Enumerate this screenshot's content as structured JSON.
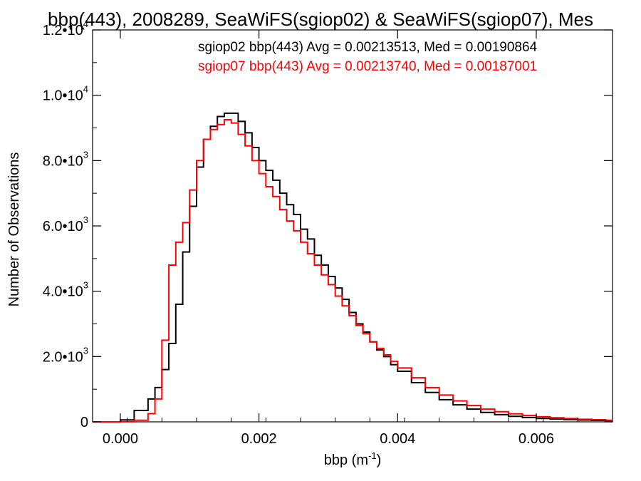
{
  "chart_data": {
    "type": "line",
    "title": "bbp(443), 2008289, SeaWiFS(sgiop02) & SeaWiFS(sgiop07), Mes",
    "xlabel": "bbp (m",
    "xlabel_exp": "-1",
    "xlabel_suffix": ")",
    "ylabel": "Number of Observations",
    "xlim": [
      -0.0004,
      0.0071
    ],
    "ylim": [
      0,
      12000
    ],
    "x_ticks": [
      {
        "value": 0.0,
        "label": "0.000"
      },
      {
        "value": 0.002,
        "label": "0.002"
      },
      {
        "value": 0.004,
        "label": "0.004"
      },
      {
        "value": 0.006,
        "label": "0.006"
      }
    ],
    "y_ticks": [
      {
        "value": 0,
        "mantissa": "0",
        "exp": ""
      },
      {
        "value": 2000,
        "mantissa": "2.0•10",
        "exp": "3"
      },
      {
        "value": 4000,
        "mantissa": "4.0•10",
        "exp": "3"
      },
      {
        "value": 6000,
        "mantissa": "6.0•10",
        "exp": "3"
      },
      {
        "value": 8000,
        "mantissa": "8.0•10",
        "exp": "3"
      },
      {
        "value": 10000,
        "mantissa": "1.0•10",
        "exp": "4"
      },
      {
        "value": 12000,
        "mantissa": "1.2•10",
        "exp": "4"
      }
    ],
    "grid": false,
    "legend_position": "top-right",
    "series": [
      {
        "name": "sgiop02 bbp(443) Avg = 0.00213513, Med = 0.00190864",
        "color": "#000000",
        "x": [
          -0.0004,
          0.0,
          0.0002,
          0.0004,
          0.0005,
          0.0006,
          0.0007,
          0.0008,
          0.0009,
          0.001,
          0.0011,
          0.0012,
          0.0013,
          0.0014,
          0.0015,
          0.0016,
          0.0017,
          0.0018,
          0.0019,
          0.002,
          0.0021,
          0.0022,
          0.0023,
          0.0024,
          0.0025,
          0.0026,
          0.0027,
          0.0028,
          0.0029,
          0.003,
          0.0031,
          0.0032,
          0.0033,
          0.0034,
          0.0035,
          0.0036,
          0.0037,
          0.0038,
          0.0039,
          0.004,
          0.0042,
          0.0044,
          0.0046,
          0.0048,
          0.005,
          0.0052,
          0.0054,
          0.0056,
          0.0058,
          0.006,
          0.0062,
          0.0064,
          0.0066,
          0.0068,
          0.007
        ],
        "values": [
          0,
          60,
          350,
          700,
          1050,
          1600,
          2400,
          3600,
          5200,
          6600,
          7800,
          8650,
          9050,
          9350,
          9450,
          9450,
          9200,
          8850,
          8400,
          8000,
          7700,
          7400,
          7000,
          6650,
          6350,
          5900,
          5600,
          5100,
          4800,
          4450,
          4100,
          3750,
          3350,
          3000,
          2750,
          2450,
          2200,
          2000,
          1750,
          1550,
          1200,
          900,
          680,
          520,
          390,
          290,
          220,
          170,
          135,
          105,
          85,
          70,
          55,
          45,
          35
        ]
      },
      {
        "name": "sgiop07 bbp(443) Avg = 0.00213740, Med = 0.00187001",
        "color": "#ff0000",
        "x": [
          -0.0004,
          0.0,
          0.0002,
          0.0004,
          0.0005,
          0.0006,
          0.0007,
          0.0008,
          0.0009,
          0.001,
          0.0011,
          0.0012,
          0.0013,
          0.0014,
          0.0015,
          0.0016,
          0.0017,
          0.0018,
          0.0019,
          0.002,
          0.0021,
          0.0022,
          0.0023,
          0.0024,
          0.0025,
          0.0026,
          0.0027,
          0.0028,
          0.0029,
          0.003,
          0.0031,
          0.0032,
          0.0033,
          0.0034,
          0.0035,
          0.0036,
          0.0037,
          0.0038,
          0.0039,
          0.004,
          0.0042,
          0.0044,
          0.0046,
          0.0048,
          0.005,
          0.0052,
          0.0054,
          0.0056,
          0.0058,
          0.006,
          0.0062,
          0.0064,
          0.0066,
          0.0068,
          0.007
        ],
        "values": [
          0,
          5,
          50,
          250,
          700,
          2500,
          4800,
          5500,
          6100,
          7100,
          8000,
          8650,
          8950,
          9100,
          9250,
          9150,
          8800,
          8450,
          8000,
          7600,
          7200,
          6900,
          6500,
          6150,
          5850,
          5500,
          5150,
          4800,
          4500,
          4200,
          3850,
          3550,
          3250,
          2950,
          2700,
          2450,
          2250,
          2050,
          1850,
          1650,
          1350,
          1050,
          820,
          640,
          500,
          390,
          310,
          245,
          195,
          155,
          125,
          100,
          80,
          65,
          50
        ]
      }
    ]
  }
}
